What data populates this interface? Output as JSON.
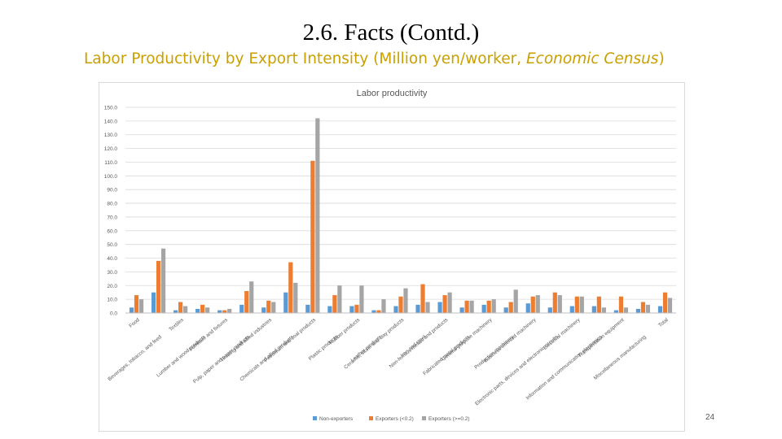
{
  "slide": {
    "title": "2.6. Facts (Contd.)",
    "subtitle_main": "Labor Productivity by Export Intensity (Million yen/worker, ",
    "subtitle_italic": "Economic Census",
    "subtitle_close": ")",
    "page_number": "24"
  },
  "colors": {
    "subtitle": "#c9a000",
    "series": [
      "#5b9bd5",
      "#ed7d31",
      "#a5a5a5"
    ],
    "grid": "#d9d9d9",
    "axis_text": "#595959"
  },
  "chart_data": {
    "type": "bar",
    "title": "Labor productivity",
    "xlabel": "",
    "ylabel": "",
    "ylim": [
      0,
      150
    ],
    "yticks": [
      "0.0",
      "10.0",
      "20.0",
      "30.0",
      "40.0",
      "50.0",
      "60.0",
      "70.0",
      "80.0",
      "90.0",
      "100.0",
      "110.0",
      "120.0",
      "130.0",
      "140.0",
      "150.0"
    ],
    "grid": true,
    "legend_position": "bottom",
    "categories": [
      "Food",
      "Beverages, tobacco, and feed",
      "Textiles",
      "Lumber and wood products",
      "Furniture and fixtures",
      "Pulp, paper and paper products",
      "Printing and allied industries",
      "Chemicals and allied products",
      "Petroleum and coal products",
      "Plastic products",
      "Rubber products",
      "Leather products",
      "Ceramic, stone and clay products",
      "Iron and steel",
      "Non-ferrous metals and products",
      "Fabricated metal products",
      "General-purpose machinery",
      "Production machinery",
      "Business oriented machinery",
      "Electronic parts, devices and electronic circuits",
      "Electrical machinery",
      "Information and communication electronics",
      "Transportation equipment",
      "Miscellaneous manufacturing",
      "Total"
    ],
    "series": [
      {
        "name": "Non-exporters",
        "values": [
          4,
          15,
          2,
          3,
          2,
          6,
          4,
          15,
          6,
          5,
          5,
          2,
          5,
          6,
          8,
          4,
          6,
          4,
          7,
          4,
          5,
          5,
          2,
          3,
          5
        ]
      },
      {
        "name": "Exporters (<0.2)",
        "values": [
          13,
          38,
          8,
          6,
          2,
          16,
          9,
          37,
          111,
          13,
          6,
          2,
          12,
          21,
          13,
          9,
          9,
          8,
          12,
          15,
          12,
          12,
          12,
          8,
          15
        ]
      },
      {
        "name": "Exporters (>=0.2)",
        "values": [
          10,
          47,
          5,
          4,
          3,
          23,
          8,
          22,
          142,
          20,
          20,
          10,
          18,
          8,
          15,
          9,
          10,
          17,
          13,
          13,
          12,
          4,
          4,
          6,
          11
        ]
      }
    ]
  }
}
